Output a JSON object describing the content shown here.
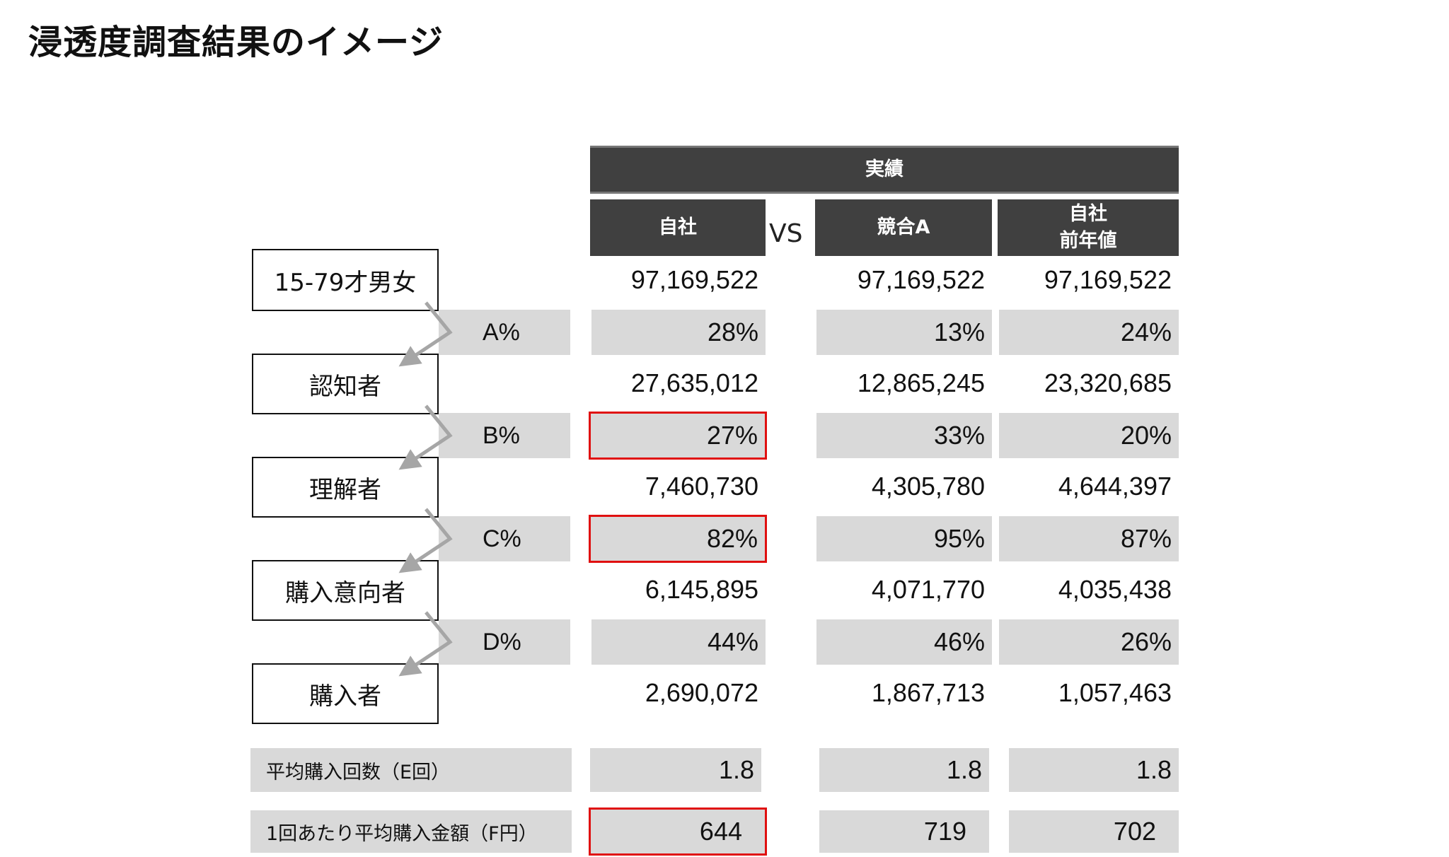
{
  "title": "浸透度調査結果のイメージ",
  "header": {
    "group": "実績",
    "vs": "VS",
    "col1": "自社",
    "col2": "競合A",
    "col3_line1": "自社",
    "col3_line2": "前年値"
  },
  "stages": [
    {
      "label": "15-79才男女",
      "values": [
        "97,169,522",
        "97,169,522",
        "97,169,522"
      ]
    },
    {
      "label": "認知者",
      "values": [
        "27,635,012",
        "12,865,245",
        "23,320,685"
      ]
    },
    {
      "label": "理解者",
      "values": [
        "7,460,730",
        "4,305,780",
        "4,644,397"
      ]
    },
    {
      "label": "購入意向者",
      "values": [
        "6,145,895",
        "4,071,770",
        "4,035,438"
      ]
    },
    {
      "label": "購入者",
      "values": [
        "2,690,072",
        "1,867,713",
        "1,057,463"
      ]
    }
  ],
  "ratios": [
    {
      "label": "A%",
      "values": [
        "28%",
        "13%",
        "24%"
      ]
    },
    {
      "label": "B%",
      "values": [
        "27%",
        "33%",
        "20%"
      ]
    },
    {
      "label": "C%",
      "values": [
        "82%",
        "95%",
        "87%"
      ]
    },
    {
      "label": "D%",
      "values": [
        "44%",
        "46%",
        "26%"
      ]
    }
  ],
  "metrics": [
    {
      "label": "平均購入回数（E回）",
      "values": [
        "1.8",
        "1.8",
        "1.8"
      ]
    },
    {
      "label": "1回あたり平均購入金額（F円）",
      "values": [
        "644",
        "719",
        "702"
      ]
    }
  ],
  "colors": {
    "header_bg": "#404040",
    "cell_gray": "#d9d9d9",
    "highlight": "#e01010"
  }
}
